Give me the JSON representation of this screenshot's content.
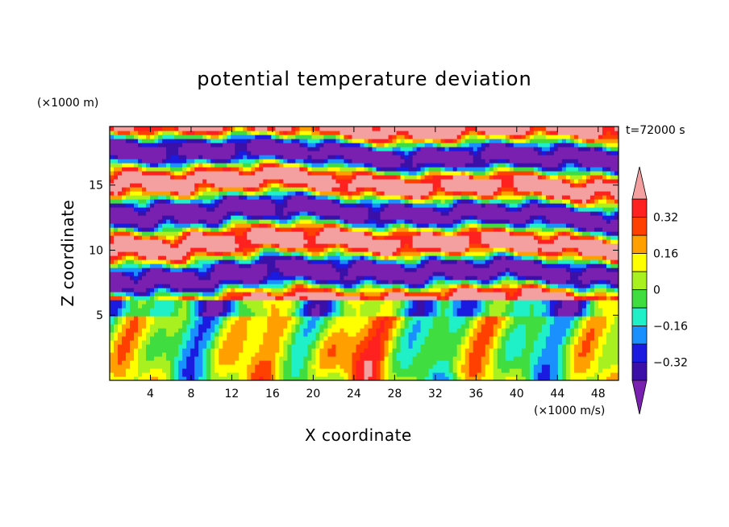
{
  "chart_data": {
    "type": "heatmap",
    "title": "potential temperature deviation",
    "xlabel": "X coordinate",
    "ylabel": "Z coordinate",
    "x_unit": "(×1000 m/s)",
    "z_unit": "(×1000 m)",
    "time_label": "t=72000 s",
    "xlim": [
      0,
      50
    ],
    "zlim": [
      0,
      19.5
    ],
    "x_ticks": [
      4,
      8,
      12,
      16,
      20,
      24,
      28,
      32,
      36,
      40,
      44,
      48
    ],
    "z_ticks": [
      5,
      10,
      15
    ],
    "colorbar": {
      "levels": [
        -0.4,
        -0.32,
        -0.24,
        -0.16,
        -0.08,
        0,
        0.08,
        0.16,
        0.24,
        0.32,
        0.4
      ],
      "labels": [
        "0.32",
        "0.16",
        "0",
        "−0.16",
        "−0.32"
      ],
      "label_values": [
        0.32,
        0.16,
        0,
        -0.16,
        -0.32
      ],
      "colors": [
        "#7a20b0",
        "#3a10a8",
        "#1a1ae0",
        "#1a90ff",
        "#20f0c8",
        "#40dd40",
        "#a8f020",
        "#ffff00",
        "#ffa000",
        "#ff4000",
        "#ff2020",
        "#f5a0a0"
      ],
      "extend": "both"
    }
  }
}
